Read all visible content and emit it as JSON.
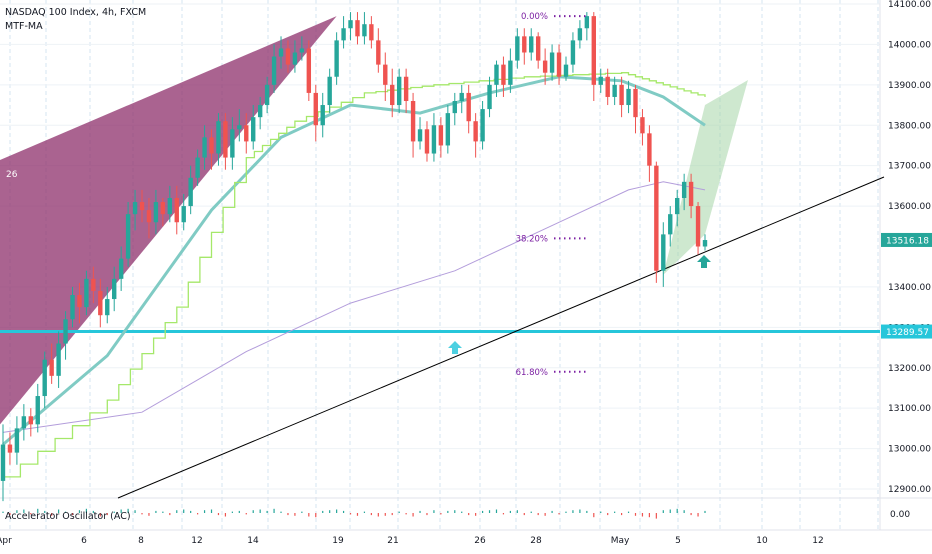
{
  "chart_data": {
    "type": "candlestick",
    "title": "NASDAQ 100 Index, 4h, FXCM",
    "indicator_label": "MTF-MA",
    "oscillator_label": "Accelerator Oscillator (AC)",
    "oscillator_value": "0.00",
    "price_axis_ticks": [
      "14100.00",
      "14000.00",
      "13900.00",
      "13800.00",
      "13700.00",
      "13600.00",
      "13400.00",
      "13300.00",
      "13200.00",
      "13100.00",
      "13000.00",
      "12900.00"
    ],
    "price_axis_values": [
      14100,
      14000,
      13900,
      13800,
      13700,
      13600,
      13400,
      13300,
      13200,
      13100,
      13000,
      12900
    ],
    "date_ticks": [
      "Apr",
      "6",
      "8",
      "12",
      "14",
      "19",
      "21",
      "26",
      "28",
      "May",
      "5",
      "10",
      "12"
    ],
    "price_badges": [
      {
        "label": "13516.18",
        "value": 13516.18,
        "color": "#26a69a"
      },
      {
        "label": "13289.57",
        "value": 13289.57,
        "color": "#26c6da"
      }
    ],
    "horizontal_line": {
      "value": 13289.57,
      "color": "#26c6da"
    },
    "fib_levels": [
      {
        "label": "0.00%",
        "value": 14070
      },
      {
        "label": "38.20%",
        "value": 13520
      },
      {
        "label": "61.80%",
        "value": 13190
      }
    ],
    "pattern_label": "26",
    "ylim": [
      12850,
      14110
    ],
    "colors": {
      "up": "#26a69a",
      "down": "#ef5350",
      "ma_fast": "#80cbc4",
      "ma_slow": "#a5e86a",
      "ma_long": "#b39ddb",
      "pattern_left": "#8e2f6b",
      "pattern_right": "#a5d6a7",
      "arrow": "#26a69a",
      "arrow_cyan": "#4dd0e1"
    },
    "icons": [
      "up-arrow-icon",
      "up-arrow-icon"
    ],
    "series_candles": [
      [
        12920,
        13010,
        12870,
        13060
      ],
      [
        13010,
        12990,
        12960,
        13040
      ],
      [
        12990,
        13050,
        12960,
        13080
      ],
      [
        13050,
        13080,
        13020,
        13110
      ],
      [
        13080,
        13060,
        13030,
        13100
      ],
      [
        13060,
        13130,
        13040,
        13160
      ],
      [
        13130,
        13220,
        13100,
        13240
      ],
      [
        13220,
        13180,
        13160,
        13260
      ],
      [
        13180,
        13260,
        13150,
        13290
      ],
      [
        13260,
        13320,
        13220,
        13340
      ],
      [
        13320,
        13380,
        13300,
        13400
      ],
      [
        13380,
        13350,
        13310,
        13410
      ],
      [
        13350,
        13420,
        13330,
        13440
      ],
      [
        13420,
        13390,
        13360,
        13450
      ],
      [
        13390,
        13330,
        13300,
        13420
      ],
      [
        13330,
        13370,
        13310,
        13400
      ],
      [
        13370,
        13420,
        13340,
        13450
      ],
      [
        13420,
        13470,
        13390,
        13500
      ],
      [
        13470,
        13580,
        13450,
        13610
      ],
      [
        13580,
        13610,
        13540,
        13640
      ],
      [
        13610,
        13590,
        13560,
        13640
      ],
      [
        13590,
        13560,
        13520,
        13620
      ],
      [
        13560,
        13610,
        13530,
        13640
      ],
      [
        13610,
        13580,
        13550,
        13620
      ],
      [
        13580,
        13620,
        13560,
        13650
      ],
      [
        13620,
        13560,
        13530,
        13650
      ],
      [
        13560,
        13600,
        13540,
        13630
      ],
      [
        13600,
        13670,
        13580,
        13700
      ],
      [
        13670,
        13720,
        13650,
        13740
      ],
      [
        13720,
        13770,
        13690,
        13800
      ],
      [
        13770,
        13730,
        13690,
        13790
      ],
      [
        13730,
        13810,
        13700,
        13830
      ],
      [
        13810,
        13720,
        13690,
        13830
      ],
      [
        13720,
        13790,
        13690,
        13820
      ],
      [
        13790,
        13800,
        13760,
        13840
      ],
      [
        13800,
        13760,
        13730,
        13830
      ],
      [
        13760,
        13820,
        13740,
        13850
      ],
      [
        13820,
        13850,
        13790,
        13870
      ],
      [
        13850,
        13900,
        13830,
        13920
      ],
      [
        13900,
        13970,
        13880,
        14000
      ],
      [
        13970,
        13990,
        13940,
        14020
      ],
      [
        13990,
        13950,
        13930,
        14010
      ],
      [
        13950,
        13980,
        13930,
        14010
      ],
      [
        13980,
        13990,
        13960,
        14020
      ],
      [
        13990,
        13880,
        13860,
        14010
      ],
      [
        13880,
        13800,
        13760,
        13900
      ],
      [
        13800,
        13850,
        13770,
        13880
      ],
      [
        13850,
        13920,
        13830,
        13940
      ],
      [
        13920,
        14010,
        13900,
        14030
      ],
      [
        14010,
        14040,
        13990,
        14070
      ],
      [
        14040,
        14060,
        14010,
        14080
      ],
      [
        14060,
        14020,
        14000,
        14080
      ],
      [
        14020,
        14050,
        14000,
        14080
      ],
      [
        14050,
        14010,
        13990,
        14070
      ],
      [
        14010,
        13950,
        13930,
        14040
      ],
      [
        13950,
        13900,
        13860,
        13980
      ],
      [
        13900,
        13850,
        13820,
        13940
      ],
      [
        13850,
        13920,
        13830,
        13940
      ],
      [
        13920,
        13860,
        13830,
        13940
      ],
      [
        13860,
        13760,
        13720,
        13880
      ],
      [
        13760,
        13790,
        13740,
        13820
      ],
      [
        13790,
        13730,
        13710,
        13810
      ],
      [
        13730,
        13800,
        13710,
        13830
      ],
      [
        13800,
        13750,
        13720,
        13820
      ],
      [
        13750,
        13830,
        13730,
        13850
      ],
      [
        13830,
        13860,
        13800,
        13880
      ],
      [
        13860,
        13880,
        13830,
        13900
      ],
      [
        13880,
        13810,
        13780,
        13900
      ],
      [
        13810,
        13760,
        13720,
        13830
      ],
      [
        13760,
        13840,
        13740,
        13860
      ],
      [
        13840,
        13900,
        13820,
        13920
      ],
      [
        13900,
        13950,
        13870,
        13960
      ],
      [
        13950,
        13900,
        13870,
        13970
      ],
      [
        13900,
        13960,
        13880,
        13990
      ],
      [
        13960,
        14020,
        13940,
        14040
      ],
      [
        14020,
        13980,
        13950,
        14040
      ],
      [
        13980,
        14020,
        13960,
        14040
      ],
      [
        14020,
        13960,
        13940,
        14030
      ],
      [
        13960,
        13930,
        13900,
        13990
      ],
      [
        13930,
        13980,
        13910,
        14000
      ],
      [
        13980,
        13920,
        13900,
        14000
      ],
      [
        13920,
        13950,
        13910,
        13970
      ],
      [
        13950,
        14010,
        13930,
        14030
      ],
      [
        14010,
        14040,
        13990,
        14060
      ],
      [
        14040,
        14070,
        14010,
        14080
      ],
      [
        14070,
        13900,
        13860,
        14080
      ],
      [
        13900,
        13920,
        13880,
        13940
      ],
      [
        13920,
        13870,
        13850,
        13940
      ],
      [
        13870,
        13900,
        13850,
        13920
      ],
      [
        13900,
        13850,
        13820,
        13920
      ],
      [
        13850,
        13890,
        13830,
        13910
      ],
      [
        13890,
        13820,
        13780,
        13900
      ],
      [
        13820,
        13780,
        13750,
        13840
      ],
      [
        13780,
        13700,
        13660,
        13800
      ],
      [
        13700,
        13440,
        13410,
        13710
      ],
      [
        13440,
        13530,
        13400,
        13560
      ],
      [
        13530,
        13580,
        13500,
        13600
      ],
      [
        13580,
        13620,
        13550,
        13640
      ],
      [
        13620,
        13660,
        13590,
        13680
      ],
      [
        13660,
        13600,
        13570,
        13680
      ],
      [
        13600,
        13500,
        13480,
        13610
      ],
      [
        13500,
        13516,
        13490,
        13530
      ]
    ],
    "trendline": [
      [
        0,
        12880
      ],
      [
        100,
        13550
      ]
    ],
    "ma_fast": [
      [
        0,
        13010
      ],
      [
        15,
        13230
      ],
      [
        30,
        13590
      ],
      [
        40,
        13770
      ],
      [
        50,
        13850
      ],
      [
        60,
        13830
      ],
      [
        70,
        13880
      ],
      [
        80,
        13920
      ],
      [
        89,
        13910
      ],
      [
        95,
        13870
      ],
      [
        101,
        13800
      ]
    ],
    "ma_slow": [
      [
        0,
        12930
      ],
      [
        15,
        13120
      ],
      [
        25,
        13350
      ],
      [
        35,
        13720
      ],
      [
        42,
        13810
      ],
      [
        52,
        13880
      ],
      [
        62,
        13900
      ],
      [
        75,
        13920
      ],
      [
        89,
        13930
      ],
      [
        95,
        13900
      ],
      [
        101,
        13870
      ]
    ],
    "ma_long": [
      [
        0,
        13040
      ],
      [
        20,
        13090
      ],
      [
        35,
        13240
      ],
      [
        50,
        13360
      ],
      [
        65,
        13440
      ],
      [
        80,
        13560
      ],
      [
        90,
        13640
      ],
      [
        95,
        13660
      ],
      [
        101,
        13640
      ]
    ],
    "oscillator": [
      0.2,
      -0.3,
      0.4,
      0.5,
      -0.2,
      0.6,
      0.3,
      -0.4,
      0.5,
      0.2,
      -0.3,
      0.4,
      0.6,
      0.3,
      -0.5,
      -0.3,
      0.2,
      0.5,
      0.6,
      0.4,
      -0.2,
      -0.4,
      0.3,
      0.2,
      -0.3,
      0.4,
      0.5,
      0.3,
      -0.2,
      0.4,
      0.5,
      -0.3,
      -0.5,
      0.2,
      0.3,
      -0.2,
      0.4,
      0.5,
      0.3,
      0.6,
      0.2,
      -0.3,
      -0.4,
      0.2,
      -0.5,
      -0.6,
      0.3,
      0.4,
      0.5,
      0.3,
      -0.2,
      -0.4,
      0.2,
      -0.3,
      -0.5,
      -0.4,
      -0.3,
      0.2,
      -0.2,
      -0.5,
      0.3,
      -0.3,
      0.4,
      -0.2,
      0.3,
      0.4,
      0.2,
      -0.3,
      -0.4,
      0.3,
      0.4,
      0.5,
      -0.2,
      0.3,
      0.4,
      -0.3,
      0.2,
      -0.3,
      -0.4,
      0.3,
      -0.2,
      0.2,
      0.4,
      0.5,
      0.3,
      -0.6,
      0.2,
      -0.3,
      0.2,
      -0.3,
      0.2,
      -0.4,
      -0.5,
      -0.6,
      -0.8,
      0.4,
      0.5,
      0.6,
      0.4,
      -0.3,
      -0.5,
      0.3
    ]
  }
}
